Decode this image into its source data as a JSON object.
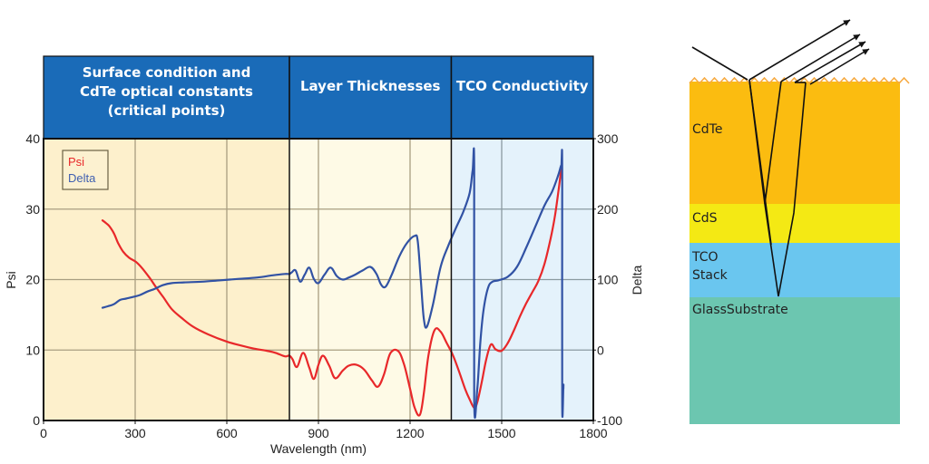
{
  "chart_data": {
    "type": "line",
    "title": "",
    "xlabel": "Wavelength (nm)",
    "ylabel": "Psi",
    "y2label": "Delta",
    "xlim": [
      0,
      1800
    ],
    "ylim": [
      0,
      40
    ],
    "y2lim": [
      -100,
      300
    ],
    "x_ticks": [
      "0",
      "300",
      "600",
      "900",
      "1200",
      "1500",
      "1800"
    ],
    "y_ticks": [
      "0",
      "10",
      "20",
      "30",
      "40"
    ],
    "y2_ticks": [
      "-100",
      "0",
      "100",
      "200",
      "300"
    ],
    "grid": true,
    "legend": {
      "position": "top-left",
      "entries": [
        "Psi",
        "Delta"
      ]
    },
    "regions": [
      {
        "label_lines": [
          "Surface condition and",
          "CdTe optical constants",
          "(critical points)"
        ],
        "from": 0,
        "to": 805,
        "color": "#fdf0cc"
      },
      {
        "label_lines": [
          "Layer Thicknesses"
        ],
        "from": 805,
        "to": 1335,
        "color": "#fefae6"
      },
      {
        "label_lines": [
          "TCO Conductivity"
        ],
        "from": 1335,
        "to": 1800,
        "color": "#e4f2fb"
      }
    ],
    "header_color": "#1a6bb8",
    "series": [
      {
        "name": "Psi",
        "axis": "left",
        "color": "#e8282a",
        "x": [
          193,
          205,
          215,
          230,
          244,
          260,
          280,
          303,
          325,
          348,
          370,
          392,
          420,
          451,
          490,
          540,
          600,
          650,
          689,
          730,
          760,
          790,
          805,
          815,
          830,
          850,
          870,
          885,
          900,
          915,
          935,
          955,
          980,
          1000,
          1025,
          1050,
          1075,
          1095,
          1115,
          1135,
          1160,
          1180,
          1200,
          1215,
          1232,
          1245,
          1260,
          1280,
          1300,
          1320,
          1340,
          1360,
          1380,
          1395,
          1410,
          1420,
          1435,
          1450,
          1465,
          1480,
          1500,
          1520,
          1540,
          1560,
          1580,
          1600,
          1620,
          1640,
          1660,
          1675,
          1690,
          1695
        ],
        "values": [
          28.4,
          28.0,
          27.6,
          26.6,
          25.2,
          24.0,
          23.1,
          22.5,
          21.5,
          20.2,
          18.8,
          17.5,
          15.8,
          14.6,
          13.3,
          12.2,
          11.2,
          10.6,
          10.2,
          9.9,
          9.6,
          9.1,
          9.2,
          8.7,
          7.6,
          9.6,
          7.5,
          5.9,
          7.9,
          9.2,
          7.8,
          6.0,
          7.1,
          7.8,
          7.9,
          7.2,
          5.7,
          4.8,
          6.6,
          9.5,
          9.9,
          8.0,
          4.5,
          1.8,
          0.8,
          3.8,
          9.2,
          12.8,
          12.6,
          11.0,
          9.3,
          7.0,
          4.5,
          3.0,
          1.8,
          2.6,
          5.5,
          8.8,
          10.8,
          10.1,
          9.9,
          11.0,
          12.8,
          14.8,
          16.6,
          18.2,
          19.8,
          22.2,
          25.8,
          29.2,
          34.0,
          35.8
        ]
      },
      {
        "name": "Delta",
        "axis": "right",
        "color": "#3152a4",
        "x": [
          193,
          210,
          230,
          250,
          270,
          290,
          315,
          340,
          365,
          390,
          420,
          460,
          520,
          580,
          640,
          700,
          750,
          790,
          805,
          812,
          825,
          840,
          855,
          870,
          885,
          900,
          920,
          940,
          960,
          980,
          1000,
          1020,
          1045,
          1070,
          1090,
          1105,
          1120,
          1140,
          1165,
          1190,
          1215,
          1225,
          1235,
          1245,
          1255,
          1275,
          1300,
          1325,
          1350,
          1375,
          1395,
          1405,
          1410,
          1410,
          1420,
          1430,
          1440,
          1455,
          1470,
          1490,
          1520,
          1550,
          1580,
          1610,
          1640,
          1665,
          1685,
          1695,
          1698,
          1698,
          1702,
          1702
        ],
        "values": [
          60,
          62,
          65,
          71,
          73,
          75,
          78,
          83,
          87,
          92,
          95,
          96,
          97,
          99,
          101,
          103,
          106,
          108,
          108,
          110,
          113,
          97,
          107,
          117,
          101,
          95,
          107,
          117,
          105,
          100,
          103,
          107,
          113,
          118,
          108,
          93,
          90,
          107,
          133,
          152,
          162,
          155,
          100,
          45,
          33,
          65,
          118,
          148,
          173,
          197,
          223,
          255,
          260,
          -72,
          -55,
          10,
          55,
          88,
          97,
          99,
          104,
          118,
          145,
          175,
          205,
          225,
          248,
          262,
          255,
          -75,
          -50,
          -55
        ]
      }
    ]
  },
  "diagram": {
    "layers": [
      {
        "name": "CdTe",
        "color": "#fbbc10"
      },
      {
        "name": "CdS",
        "color": "#f4e914"
      },
      {
        "name": "TCO Stack",
        "label_lines": [
          "TCO",
          "Stack"
        ],
        "color": "#6ac6ef"
      },
      {
        "name": "Glass Substrate",
        "label_lines": [
          "GlassSubstrate"
        ],
        "color": "#6cc6b0"
      }
    ],
    "rough_surface_color": "#f7a940",
    "ray_color": "#111111"
  }
}
